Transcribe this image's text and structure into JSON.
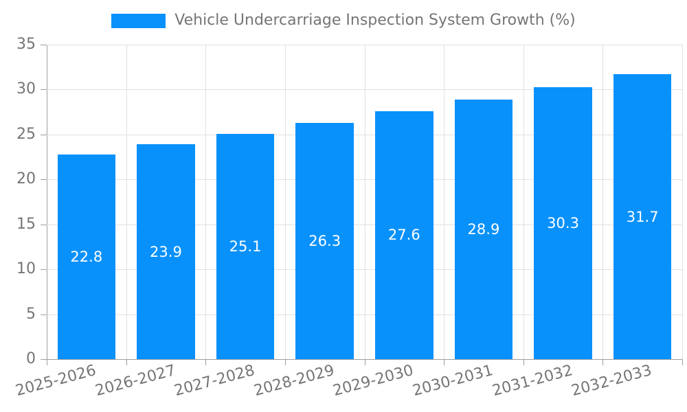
{
  "chart_data": {
    "type": "bar",
    "title": "Vehicle Undercarriage Inspection System Growth (%)",
    "legend": {
      "position": "top-center",
      "label": "Vehicle Undercarriage Inspection System Growth (%)"
    },
    "categories": [
      "2025-2026",
      "2026-2027",
      "2027-2028",
      "2028-2029",
      "2029-2030",
      "2030-2031",
      "2031-2032",
      "2032-2033"
    ],
    "values": [
      22.8,
      23.9,
      25.1,
      26.3,
      27.6,
      28.9,
      30.3,
      31.7
    ],
    "bar_labels": [
      "22.8",
      "23.9",
      "25.1",
      "26.3",
      "27.6",
      "28.9",
      "30.3",
      "31.7"
    ],
    "xlabel": "",
    "ylabel": "",
    "ylim": [
      0,
      35
    ],
    "yticks": [
      0,
      5,
      10,
      15,
      20,
      25,
      30,
      35
    ],
    "xtick_rotation_deg": -15,
    "grid": true,
    "bar_label_position": "center-inside",
    "colors": {
      "bar": "#0991FB",
      "grid": "#E1E1E1",
      "axis": "#9E9E9E",
      "tick_text": "#757575",
      "title_text": "#757575",
      "bar_label": "#FFFFFF",
      "background": "#FFFFFF"
    }
  }
}
